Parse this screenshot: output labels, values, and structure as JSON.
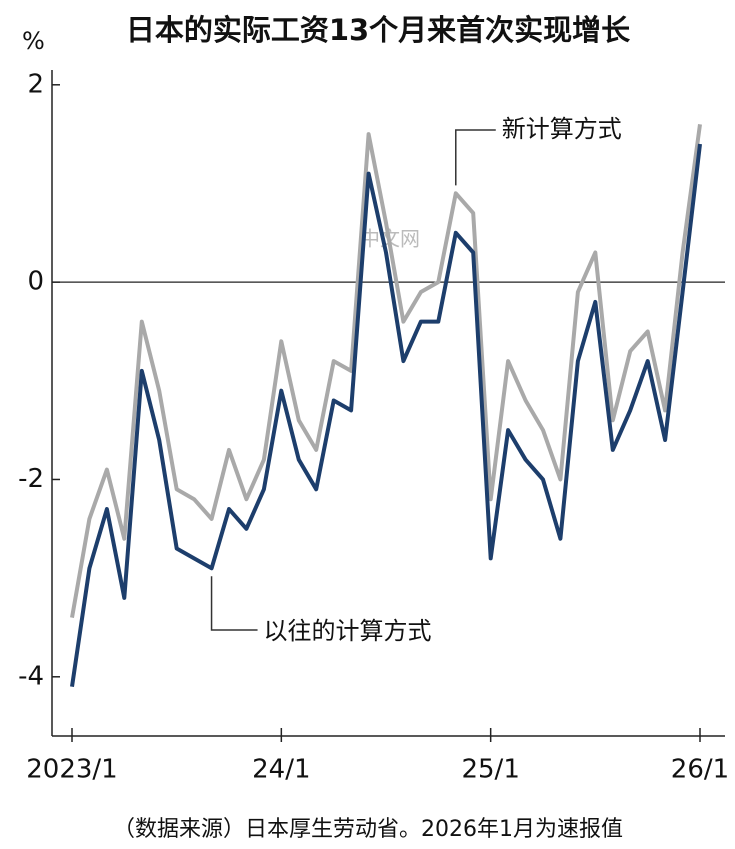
{
  "chart_data": {
    "type": "line",
    "title": "日本的实际工资13个月来首次实现增长",
    "y_label": "%",
    "source": "（数据来源）日本厚生劳动省。2026年1月为速报值",
    "watermark": "中文网",
    "categories": [
      "2023/1",
      null,
      null,
      null,
      null,
      null,
      null,
      null,
      null,
      null,
      null,
      null,
      "24/1",
      null,
      null,
      null,
      null,
      null,
      null,
      null,
      null,
      null,
      null,
      null,
      "25/1",
      null,
      null,
      null,
      null,
      null,
      null,
      null,
      null,
      null,
      null,
      null,
      "26/1"
    ],
    "series": [
      {
        "name": "新计算方式",
        "color": "#a9a9a9",
        "values": [
          -3.4,
          -2.4,
          -1.9,
          -2.6,
          -0.4,
          -1.1,
          -2.1,
          -2.2,
          -2.4,
          -1.7,
          -2.2,
          -1.8,
          -0.6,
          -1.4,
          -1.7,
          -0.8,
          -0.9,
          1.5,
          0.6,
          -0.4,
          -0.1,
          0.0,
          0.9,
          0.7,
          -2.2,
          -0.8,
          -1.2,
          -1.5,
          -2.0,
          -0.1,
          0.3,
          -1.4,
          -0.7,
          -0.5,
          -1.3,
          0.3,
          1.6
        ]
      },
      {
        "name": "以往的计算方式",
        "color": "#1d3e6c",
        "values": [
          -4.1,
          -2.9,
          -2.3,
          -3.2,
          -0.9,
          -1.6,
          -2.7,
          -2.8,
          -2.9,
          -2.3,
          -2.5,
          -2.1,
          -1.1,
          -1.8,
          -2.1,
          -1.2,
          -1.3,
          1.1,
          0.3,
          -0.8,
          -0.4,
          -0.4,
          0.5,
          0.3,
          -2.8,
          -1.5,
          -1.8,
          -2.0,
          -2.6,
          -0.8,
          -0.2,
          -1.7,
          -1.3,
          -0.8,
          -1.6,
          -0.1,
          1.4
        ]
      }
    ],
    "ylim": [
      -4.6,
      2.15
    ],
    "yticks": [
      -4,
      -2,
      0,
      2
    ],
    "zero_line": true
  }
}
